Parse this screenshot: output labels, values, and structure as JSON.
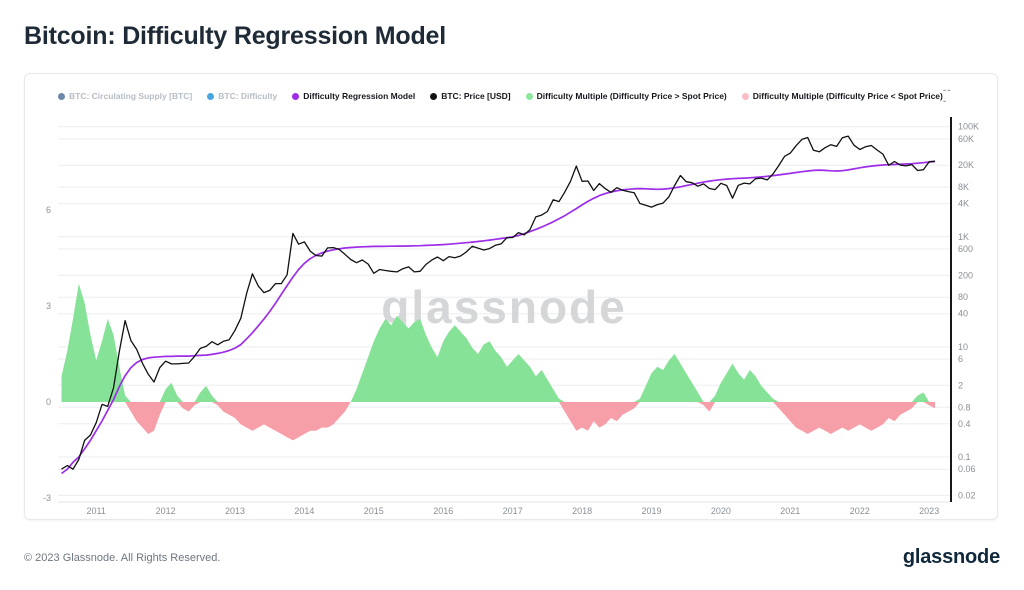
{
  "header": {
    "title": "Bitcoin: Difficulty Regression Model"
  },
  "legend": {
    "items": [
      {
        "label": "BTC: Circulating Supply [BTC]",
        "color": "#6d87a8",
        "active": false
      },
      {
        "label": "BTC: Difficulty",
        "color": "#4aa6de",
        "active": false
      },
      {
        "label": "Difficulty Regression Model",
        "color": "#9d2de8",
        "active": true
      },
      {
        "label": "BTC: Price [USD]",
        "color": "#111111",
        "active": true
      },
      {
        "label": "Difficulty Multiple (Difficulty Price > Spot Price)",
        "color": "#8ce79d",
        "active": true
      },
      {
        "label": "Difficulty Multiple (Difficulty Price < Spot Price)",
        "color": "#f9bcc6",
        "active": true
      }
    ],
    "menu_label": "---"
  },
  "watermark": "glassnode",
  "footer": {
    "copyright": "© 2023 Glassnode. All Rights Reserved.",
    "logo_text": "glassnode"
  },
  "chart_data": {
    "type": "line",
    "title": "Bitcoin: Difficulty Regression Model",
    "legend_position": "top",
    "grid": true,
    "x_axis": {
      "range": [
        2010.45,
        2023.3
      ],
      "ticks": [
        2011,
        2012,
        2013,
        2014,
        2015,
        2016,
        2017,
        2018,
        2019,
        2020,
        2021,
        2022,
        2023
      ]
    },
    "y_left_axis": {
      "title": "Difficulty Multiple",
      "scale": "linear",
      "range": [
        -3.125,
        8.91
      ],
      "ticks": [
        -3,
        0,
        3,
        6
      ]
    },
    "y_right_axis": {
      "title": "BTC Price [USD]",
      "scale": "log",
      "range": [
        0.0152,
        150000
      ],
      "ticks": [
        {
          "label": "100K",
          "value": 100000
        },
        {
          "label": "60K",
          "value": 60000
        },
        {
          "label": "20K",
          "value": 20000
        },
        {
          "label": "8K",
          "value": 8000
        },
        {
          "label": "4K",
          "value": 4000
        },
        {
          "label": "1K",
          "value": 1000
        },
        {
          "label": "600",
          "value": 600
        },
        {
          "label": "200",
          "value": 200
        },
        {
          "label": "80",
          "value": 80
        },
        {
          "label": "40",
          "value": 40
        },
        {
          "label": "10",
          "value": 10
        },
        {
          "label": "6",
          "value": 6
        },
        {
          "label": "2",
          "value": 2
        },
        {
          "label": "0.8",
          "value": 0.8
        },
        {
          "label": "0.4",
          "value": 0.4
        },
        {
          "label": "0.1",
          "value": 0.1
        },
        {
          "label": "0.06",
          "value": 0.06
        },
        {
          "label": "0.02",
          "value": 0.02
        }
      ]
    },
    "sampling": {
      "x_start": 2010.5,
      "x_step_years": 0.0833333
    },
    "series": [
      {
        "name": "Difficulty Regression Model",
        "type": "line",
        "axis": "right",
        "color": "#9d2de8",
        "values": [
          0.05,
          0.06,
          0.08,
          0.1,
          0.14,
          0.2,
          0.3,
          0.45,
          0.7,
          1.1,
          1.9,
          3,
          4.2,
          5.2,
          5.9,
          6.3,
          6.5,
          6.6,
          6.7,
          6.7,
          6.8,
          6.8,
          6.8,
          6.9,
          7,
          7.1,
          7.3,
          7.6,
          8,
          8.6,
          9.5,
          11,
          14,
          18,
          24,
          32,
          44,
          62,
          90,
          130,
          185,
          255,
          330,
          400,
          460,
          510,
          550,
          580,
          605,
          625,
          640,
          650,
          658,
          664,
          668,
          670,
          672,
          674,
          676,
          678,
          681,
          685,
          690,
          696,
          703,
          712,
          722,
          734,
          748,
          763,
          780,
          800,
          822,
          846,
          872,
          900,
          930,
          963,
          1000,
          1060,
          1140,
          1240,
          1360,
          1500,
          1670,
          1870,
          2120,
          2420,
          2800,
          3250,
          3800,
          4400,
          5000,
          5600,
          6100,
          6500,
          6850,
          7100,
          7300,
          7450,
          7500,
          7450,
          7350,
          7300,
          7350,
          7500,
          7750,
          8100,
          8500,
          8950,
          9400,
          9850,
          10250,
          10600,
          10900,
          11150,
          11350,
          11500,
          11650,
          11800,
          12000,
          12250,
          12550,
          12900,
          13300,
          13750,
          14200,
          14700,
          15200,
          15700,
          16100,
          16300,
          16100,
          15800,
          15700,
          15900,
          16400,
          17100,
          17900,
          18600,
          19200,
          19700,
          20100,
          20400,
          20600,
          20800,
          21000,
          21300,
          21700,
          22200,
          22800,
          23400
        ]
      },
      {
        "name": "BTC: Price [USD]",
        "type": "line",
        "axis": "right",
        "color": "#111111",
        "values": [
          0.06,
          0.07,
          0.06,
          0.09,
          0.2,
          0.25,
          0.42,
          0.9,
          0.83,
          1.8,
          8.2,
          30,
          13,
          9,
          5,
          3.2,
          2.3,
          4.2,
          5.5,
          4.9,
          4.9,
          5,
          5.1,
          6.7,
          9.4,
          10.2,
          12.4,
          10.9,
          12.6,
          13.5,
          20,
          33,
          93,
          213,
          128,
          97,
          106,
          141,
          141,
          204,
          1150,
          732,
          806,
          550,
          458,
          445,
          628,
          635,
          589,
          481,
          387,
          338,
          378,
          320,
          217,
          254,
          244,
          236,
          230,
          263,
          284,
          230,
          236,
          314,
          377,
          430,
          368,
          437,
          416,
          448,
          531,
          673,
          624,
          575,
          609,
          700,
          742,
          963,
          970,
          1190,
          1080,
          1350,
          2300,
          2480,
          2875,
          4700,
          4360,
          6450,
          10200,
          19200,
          10200,
          10300,
          6930,
          9240,
          7500,
          6400,
          7780,
          7010,
          6630,
          6300,
          4030,
          3740,
          3460,
          3850,
          4100,
          5320,
          8560,
          13000,
          10000,
          9600,
          8300,
          9150,
          7550,
          7200,
          9350,
          8550,
          5030,
          8620,
          9450,
          9140,
          11350,
          11650,
          10780,
          13800,
          19700,
          29000,
          33100,
          45200,
          58800,
          63500,
          37300,
          35000,
          41500,
          47100,
          43800,
          63000,
          67500,
          46200,
          38500,
          43200,
          45500,
          37700,
          31800,
          19900,
          23300,
          20050,
          19400,
          20500,
          16000,
          16550,
          23100,
          23500
        ]
      },
      {
        "name": "Difficulty Multiple",
        "type": "area",
        "axis": "left",
        "color_positive": "#85e297",
        "color_negative": "#f79fa9",
        "values": [
          0.8,
          1.6,
          2.6,
          3.7,
          3.1,
          2.1,
          1.3,
          1.9,
          2.6,
          2.1,
          1.1,
          0.2,
          -0.3,
          -0.6,
          -0.8,
          -1,
          -0.9,
          -0.4,
          0.4,
          0.6,
          0.2,
          -0.2,
          -0.3,
          -0.1,
          0.3,
          0.5,
          0.2,
          -0.1,
          -0.3,
          -0.4,
          -0.5,
          -0.7,
          -0.8,
          -0.9,
          -0.8,
          -0.7,
          -0.8,
          -0.9,
          -1,
          -1.1,
          -1.2,
          -1.1,
          -1,
          -0.9,
          -0.9,
          -0.8,
          -0.8,
          -0.7,
          -0.5,
          -0.3,
          0,
          0.4,
          0.9,
          1.4,
          1.9,
          2.3,
          2.6,
          2.4,
          2.7,
          2.5,
          2.3,
          2.5,
          2.6,
          2.1,
          1.7,
          1.4,
          1.9,
          2.2,
          2.4,
          2.2,
          2,
          1.7,
          1.5,
          1.8,
          1.9,
          1.6,
          1.4,
          1.1,
          1.3,
          1.5,
          1.3,
          1.1,
          0.8,
          1,
          0.7,
          0.4,
          0.1,
          -0.3,
          -0.6,
          -0.9,
          -0.8,
          -0.9,
          -0.6,
          -0.8,
          -0.7,
          -0.5,
          -0.6,
          -0.4,
          -0.3,
          -0.2,
          0.1,
          0.5,
          0.9,
          1.1,
          1,
          1.3,
          1.5,
          1.2,
          0.9,
          0.6,
          0.3,
          -0.1,
          -0.3,
          0.2,
          0.6,
          0.9,
          1.2,
          0.9,
          0.7,
          1,
          0.8,
          0.5,
          0.3,
          0.1,
          -0.2,
          -0.4,
          -0.6,
          -0.8,
          -0.9,
          -1,
          -0.9,
          -0.8,
          -0.9,
          -1,
          -0.9,
          -0.8,
          -0.9,
          -0.8,
          -0.7,
          -0.8,
          -0.9,
          -0.8,
          -0.7,
          -0.5,
          -0.6,
          -0.4,
          -0.3,
          -0.2,
          0.2,
          0.3,
          -0.1,
          -0.2
        ]
      }
    ]
  }
}
